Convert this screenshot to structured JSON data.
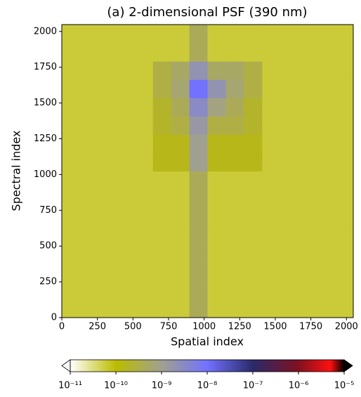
{
  "chart_data": {
    "type": "heatmap",
    "title": "(a) 2-dimensional PSF (390 nm)",
    "xlabel": "Spatial index",
    "ylabel": "Spectral index",
    "xlim": [
      0,
      2048
    ],
    "ylim": [
      0,
      2048
    ],
    "xticks": [
      0,
      250,
      500,
      750,
      1000,
      1250,
      1500,
      1750,
      2000
    ],
    "yticks": [
      0,
      250,
      500,
      750,
      1000,
      1250,
      1500,
      1750,
      2000
    ],
    "z": [
      [
        6e-11,
        6e-11,
        6e-11,
        6e-11,
        6e-11,
        6e-11,
        6e-11,
        4e-10,
        6e-11,
        6e-11,
        6e-11,
        6e-11,
        6e-11,
        6e-11,
        6e-11,
        6e-11
      ],
      [
        6e-11,
        6e-11,
        6e-11,
        6e-11,
        6e-11,
        6e-11,
        6e-11,
        4e-10,
        6e-11,
        6e-11,
        6e-11,
        6e-11,
        6e-11,
        6e-11,
        6e-11,
        6e-11
      ],
      [
        6e-11,
        6e-11,
        6e-11,
        6e-11,
        6e-11,
        6e-11,
        6e-11,
        4e-10,
        6e-11,
        6e-11,
        6e-11,
        6e-11,
        6e-11,
        6e-11,
        6e-11,
        6e-11
      ],
      [
        6e-11,
        6e-11,
        6e-11,
        6e-11,
        6e-11,
        6e-11,
        6e-11,
        4e-10,
        6e-11,
        6e-11,
        6e-11,
        6e-11,
        6e-11,
        6e-11,
        6e-11,
        6e-11
      ],
      [
        6e-11,
        6e-11,
        6e-11,
        6e-11,
        6e-11,
        6e-11,
        6e-11,
        4e-10,
        6e-11,
        6e-11,
        6e-11,
        6e-11,
        6e-11,
        6e-11,
        6e-11,
        6e-11
      ],
      [
        6e-11,
        6e-11,
        6e-11,
        6e-11,
        6e-11,
        6e-11,
        6e-11,
        4e-10,
        6e-11,
        6e-11,
        6e-11,
        6e-11,
        6e-11,
        6e-11,
        6e-11,
        6e-11
      ],
      [
        6e-11,
        6e-11,
        6e-11,
        6e-11,
        6e-11,
        6e-11,
        6e-11,
        4e-10,
        6e-11,
        6e-11,
        6e-11,
        6e-11,
        6e-11,
        6e-11,
        6e-11,
        6e-11
      ],
      [
        6e-11,
        6e-11,
        6e-11,
        6e-11,
        6e-11,
        6e-11,
        6e-11,
        4e-10,
        6e-11,
        6e-11,
        6e-11,
        6e-11,
        6e-11,
        6e-11,
        6e-11,
        6e-11
      ],
      [
        6e-11,
        6e-11,
        6e-11,
        6e-11,
        6e-11,
        1.5e-10,
        1.5e-10,
        1e-09,
        1.5e-10,
        1.5e-10,
        1.5e-10,
        6e-11,
        6e-11,
        6e-11,
        6e-11,
        6e-11
      ],
      [
        6e-11,
        6e-11,
        6e-11,
        6e-11,
        6e-11,
        1.5e-10,
        1.5e-10,
        1e-09,
        1.5e-10,
        1.5e-10,
        1.5e-10,
        6e-11,
        6e-11,
        6e-11,
        6e-11,
        6e-11
      ],
      [
        6e-11,
        6e-11,
        6e-11,
        6e-11,
        6e-11,
        2e-10,
        3e-10,
        1.5e-09,
        3e-10,
        3e-10,
        2e-10,
        6e-11,
        6e-11,
        6e-11,
        6e-11,
        6e-11
      ],
      [
        6e-11,
        6e-11,
        6e-11,
        6e-11,
        6e-11,
        2e-10,
        4e-10,
        3e-09,
        8e-10,
        4e-10,
        2e-10,
        6e-11,
        6e-11,
        6e-11,
        6e-11,
        6e-11
      ],
      [
        6e-11,
        6e-11,
        6e-11,
        6e-11,
        6e-11,
        3e-10,
        6e-10,
        1e-08,
        2e-09,
        6e-10,
        3e-10,
        6e-11,
        6e-11,
        6e-11,
        6e-11,
        6e-11
      ],
      [
        6e-11,
        6e-11,
        6e-11,
        6e-11,
        6e-11,
        3e-10,
        5e-10,
        2e-09,
        5e-10,
        5e-10,
        3e-10,
        6e-11,
        6e-11,
        6e-11,
        6e-11,
        6e-11
      ],
      [
        6e-11,
        6e-11,
        6e-11,
        6e-11,
        6e-11,
        6e-11,
        6e-11,
        4e-10,
        6e-11,
        6e-11,
        6e-11,
        6e-11,
        6e-11,
        6e-11,
        6e-11,
        6e-11
      ],
      [
        6e-11,
        6e-11,
        6e-11,
        6e-11,
        6e-11,
        6e-11,
        6e-11,
        4e-10,
        6e-11,
        6e-11,
        6e-11,
        6e-11,
        6e-11,
        6e-11,
        6e-11,
        6e-11
      ]
    ],
    "colorscale": [
      {
        "value": 1e-11,
        "color": "#ffffff"
      },
      {
        "value": 1e-10,
        "color": "#bcbc00"
      },
      {
        "value": 1e-09,
        "color": "#a0a090"
      },
      {
        "value": 1e-08,
        "color": "#7272ff"
      },
      {
        "value": 1e-07,
        "color": "#2a2a6a"
      },
      {
        "value": 1e-06,
        "color": "#801020"
      },
      {
        "value": 5e-06,
        "color": "#ff1010"
      },
      {
        "value": 1e-05,
        "color": "#000000"
      }
    ],
    "colorbar_log": true,
    "colorbar_ticks": [
      {
        "value": 1e-11,
        "label": "10⁻¹¹"
      },
      {
        "value": 1e-10,
        "label": "10⁻¹⁰"
      },
      {
        "value": 1e-09,
        "label": "10⁻⁹"
      },
      {
        "value": 1e-08,
        "label": "10⁻⁸"
      },
      {
        "value": 1e-07,
        "label": "10⁻⁷"
      },
      {
        "value": 1e-06,
        "label": "10⁻⁶"
      },
      {
        "value": 1e-05,
        "label": "10⁻⁵"
      }
    ]
  }
}
